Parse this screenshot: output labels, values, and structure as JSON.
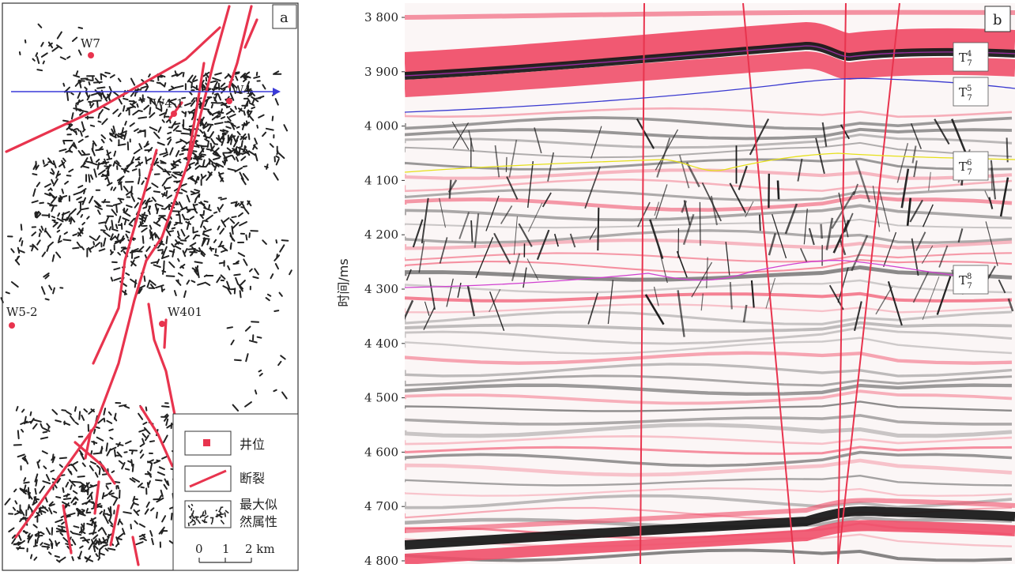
{
  "panel_a": {
    "label": "a",
    "wells": [
      {
        "name": "W7"
      },
      {
        "name": "W4"
      },
      {
        "name": "W4-1"
      },
      {
        "name": "W5-2"
      },
      {
        "name": "W401"
      }
    ],
    "legend": {
      "well": "井位",
      "fault": "断裂",
      "attribute_line1": "最大似",
      "attribute_line2": "然属性"
    },
    "scale": {
      "ticks": [
        "0",
        "1",
        "2 km"
      ]
    }
  },
  "panel_b": {
    "label": "b",
    "y_axis_title": "时间/ms",
    "y_ticks": [
      "3 800",
      "3 900",
      "4 000",
      "4 100",
      "4 200",
      "4 300",
      "4 400",
      "4 500",
      "4 600",
      "4 700",
      "4 800"
    ],
    "horizons": [
      {
        "base": "T",
        "sup": "4",
        "sub": "7",
        "color": "#9a2ca0"
      },
      {
        "base": "T",
        "sup": "5",
        "sub": "7",
        "color": "#3a3ad0"
      },
      {
        "base": "T",
        "sup": "6",
        "sub": "7",
        "color": "#e6e01a"
      },
      {
        "base": "T",
        "sup": "8",
        "sub": "7",
        "color": "#d040d0"
      }
    ]
  },
  "colors": {
    "fault": "#e8344e",
    "well": "#e8344e",
    "section_line": "#3a3ad8",
    "reflector_red": "#f0506a",
    "reflector_black": "#1a1a1a"
  }
}
